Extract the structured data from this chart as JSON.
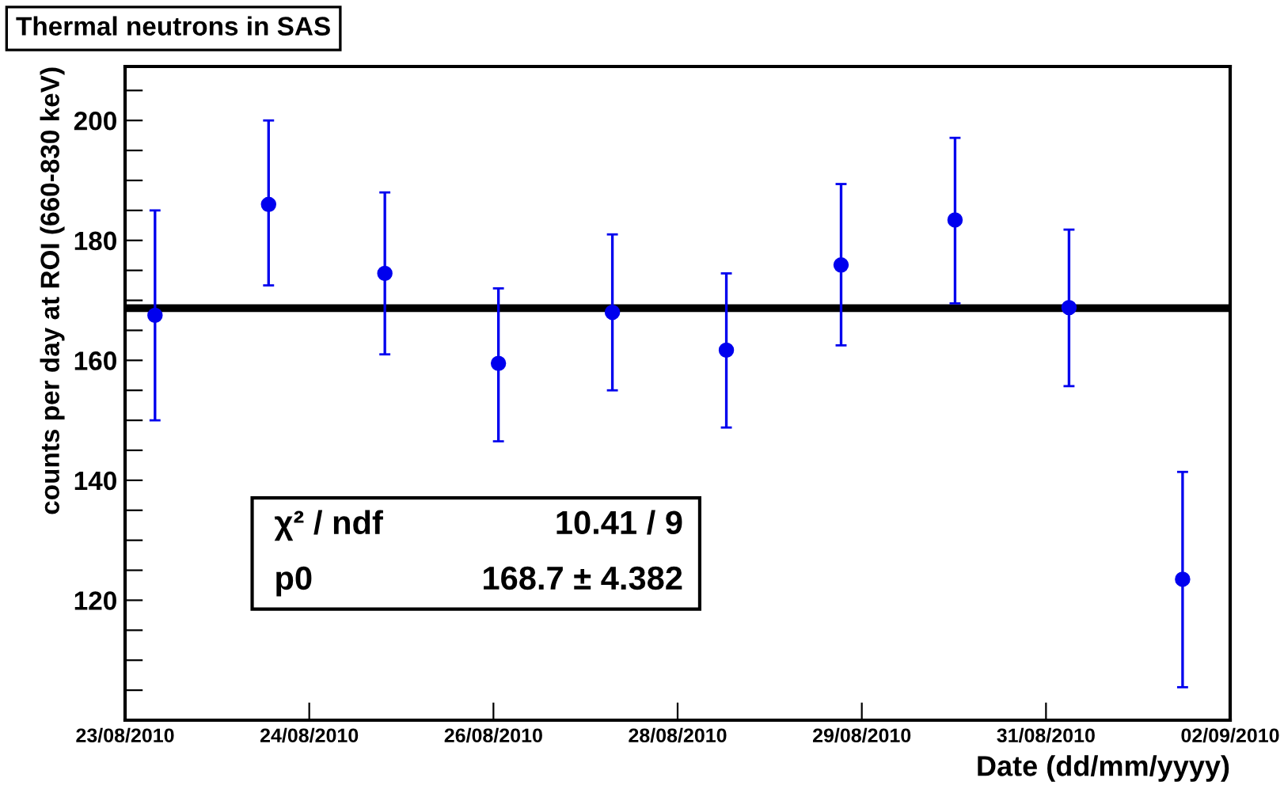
{
  "chart_data": {
    "type": "scatter",
    "title": "Thermal neutrons in SAS",
    "xlabel": "Date (dd/mm/yyyy)",
    "ylabel": "counts per day at ROI (660-830 keV)",
    "x": [
      "2010-08-23T06:30",
      "2010-08-24T07:10",
      "2010-08-25T08:25",
      "2010-08-26T09:05",
      "2010-08-27T09:50",
      "2010-08-28T10:35",
      "2010-08-29T11:30",
      "2010-08-30T12:15",
      "2010-08-31T13:00",
      "2010-09-01T13:40"
    ],
    "series": [
      {
        "color": "#0000ee",
        "values": [
          167.5,
          186,
          174.5,
          159.5,
          168,
          161.7,
          175.9,
          183.4,
          168.8,
          123.5
        ],
        "errors": [
          [
            150,
            185
          ],
          [
            172.5,
            200
          ],
          [
            161,
            188
          ],
          [
            146.5,
            172
          ],
          [
            155,
            181
          ],
          [
            148.8,
            174.5
          ],
          [
            162.5,
            189.4
          ],
          [
            169.5,
            197.1
          ],
          [
            155.7,
            181.8
          ],
          [
            105.5,
            141.4
          ]
        ]
      }
    ],
    "marker": "circle",
    "grid": false,
    "xlim": [
      "2010-08-23T00:00",
      "2010-09-02T00:00"
    ],
    "xticks": [
      {
        "value": "2010-08-23T00:00",
        "label": "23/08/2010"
      },
      {
        "value": "2010-08-24T16:00",
        "label": "24/08/2010"
      },
      {
        "value": "2010-08-26T08:00",
        "label": "26/08/2010"
      },
      {
        "value": "2010-08-28T00:00",
        "label": "28/08/2010"
      },
      {
        "value": "2010-08-29T16:00",
        "label": "29/08/2010"
      },
      {
        "value": "2010-08-31T08:00",
        "label": "31/08/2010"
      },
      {
        "value": "2010-09-02T00:00",
        "label": "02/09/2010"
      }
    ],
    "ylim": [
      100,
      209
    ],
    "yticks": [
      {
        "value": 105,
        "label": null
      },
      {
        "value": 110,
        "label": null
      },
      {
        "value": 115,
        "label": null
      },
      120,
      {
        "value": 125,
        "label": null
      },
      {
        "value": 130,
        "label": null
      },
      {
        "value": 135,
        "label": null
      },
      140,
      {
        "value": 145,
        "label": null
      },
      {
        "value": 150,
        "label": null
      },
      {
        "value": 155,
        "label": null
      },
      160,
      {
        "value": 165,
        "label": null
      },
      {
        "value": 170,
        "label": null
      },
      {
        "value": 175,
        "label": null
      },
      180,
      {
        "value": 185,
        "label": null
      },
      {
        "value": 190,
        "label": null
      },
      {
        "value": 195,
        "label": null
      },
      200,
      {
        "value": 205,
        "label": null
      }
    ],
    "ref_lines": [
      {
        "axis": "y",
        "value": 168.7,
        "color": "#000000",
        "line_style": "solid"
      }
    ],
    "annotations": [
      "χ² / ndf",
      "10.41 / 9",
      "p0",
      "168.7 ± 4.382"
    ]
  }
}
